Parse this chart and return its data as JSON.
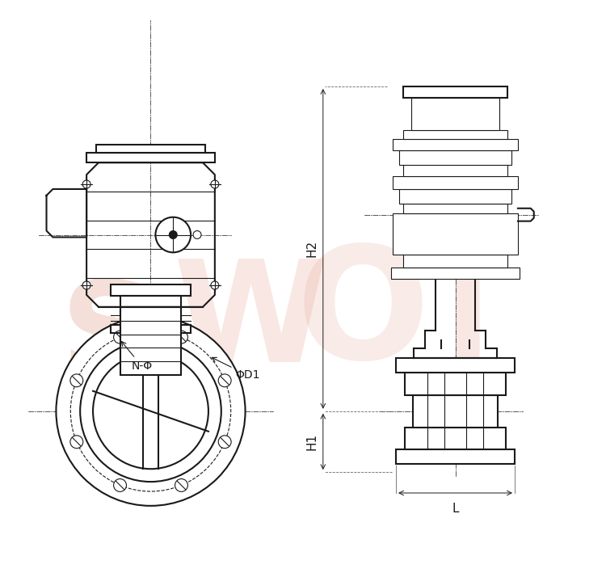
{
  "bg_color": "#ffffff",
  "line_color": "#1a1a1a",
  "wm_color": "#e8b0a0",
  "label_H2": "H2",
  "label_H1": "H1",
  "label_L": "L",
  "label_phiD1": "ΦD1",
  "label_N": "N-Φ",
  "ann_fs": 10,
  "dim_fs": 11
}
